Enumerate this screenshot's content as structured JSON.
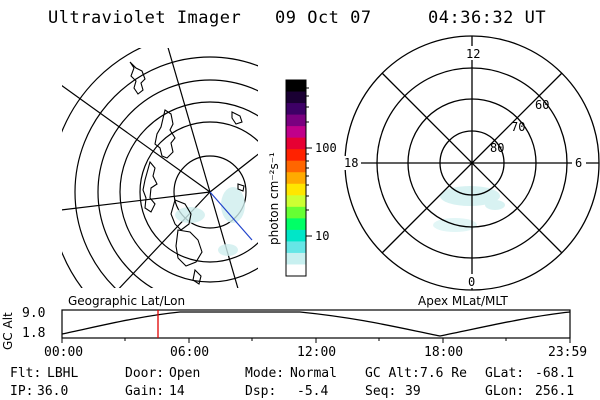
{
  "header": {
    "title": "Ultraviolet Imager",
    "date": "09 Oct 07",
    "time": "04:36:32 UT"
  },
  "left_panel": {
    "label": "Geographic Lat/Lon"
  },
  "right_panel": {
    "label": "Apex MLat/MLT",
    "clock_labels": {
      "top": "12",
      "left": "18",
      "right": "6",
      "bottom": "0"
    },
    "lat_labels": [
      "60",
      "70",
      "80"
    ]
  },
  "colorbar": {
    "unit_label": "photon cm⁻²s⁻¹",
    "ticks": [
      "100",
      "10"
    ],
    "colors": [
      "#000000",
      "#1a0033",
      "#3d0066",
      "#7a0080",
      "#c0008a",
      "#e60033",
      "#ff2200",
      "#ff6600",
      "#ffaa00",
      "#ffe600",
      "#ccff33",
      "#66ff33",
      "#00ff66",
      "#00e6c8",
      "#66e6e6",
      "#c8f0f0",
      "#ffffff"
    ]
  },
  "altitude_track": {
    "axis_label": "GC Alt",
    "y_ticks": [
      "9.0",
      "1.8"
    ],
    "x_ticks": [
      "00:00",
      "06:00",
      "12:00",
      "18:00",
      "23:59"
    ],
    "current_time": "04:36"
  },
  "status": {
    "row1": [
      {
        "label": "Flt:",
        "value": "LBHL"
      },
      {
        "label": "Door:",
        "value": "Open"
      },
      {
        "label": "Mode:",
        "value": "Normal"
      },
      {
        "label": "GC Alt:",
        "value": "7.6 Re"
      },
      {
        "label": "GLat:",
        "value": "-68.1"
      }
    ],
    "row2": [
      {
        "label": "IP:",
        "value": "36.0"
      },
      {
        "label": "Gain:",
        "value": "14"
      },
      {
        "label": "Dsp:",
        "value": "-5.4"
      },
      {
        "label": "Seq:",
        "value": "39"
      },
      {
        "label": "GLon:",
        "value": "256.1"
      }
    ]
  }
}
